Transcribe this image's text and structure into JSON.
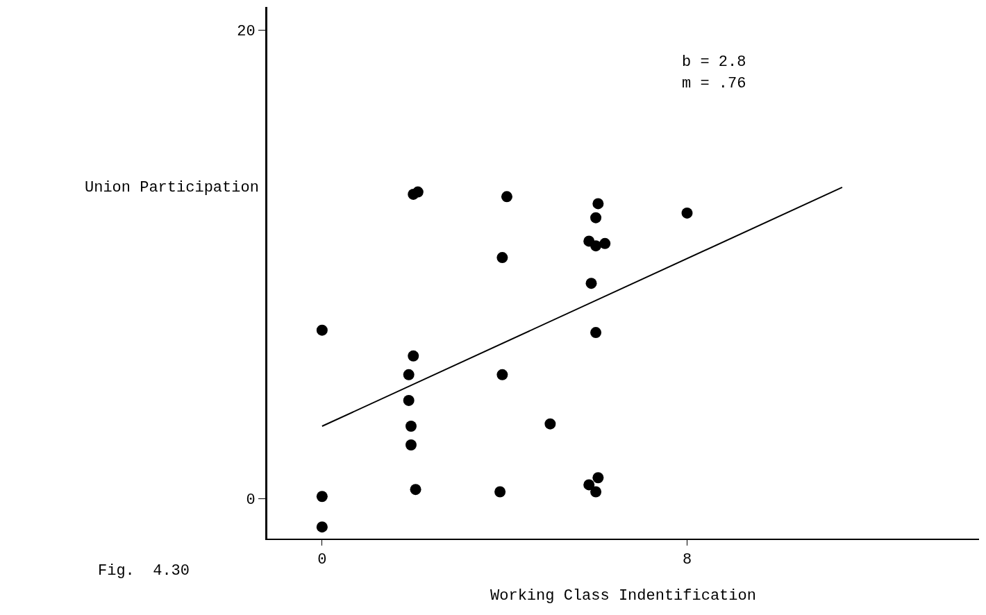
{
  "chart_data": {
    "type": "scatter",
    "xlabel": "Working Class Indentification",
    "ylabel": "Union Participation",
    "xlim": [
      -1.2,
      14.4
    ],
    "ylim": [
      -1.7,
      21
    ],
    "xticks": [
      0,
      8
    ],
    "yticks": [
      0,
      20
    ],
    "legend": false,
    "series": [
      {
        "marker": "circle",
        "color": "#000000",
        "x": [
          0,
          0,
          0,
          2,
          2.1,
          4.05,
          3.95,
          6,
          6.05,
          8,
          5.85,
          6,
          6.2,
          5.9,
          6,
          2,
          1.9,
          1.9,
          1.95,
          1.95,
          2.05,
          3.95,
          3.9,
          5,
          5.85,
          6,
          6.05
        ],
        "values": [
          7.2,
          0.1,
          -1.2,
          13,
          13.1,
          12.9,
          10.3,
          12.0,
          12.6,
          12.2,
          11,
          10.8,
          10.9,
          9.2,
          7.1,
          6.1,
          5.3,
          4.2,
          3.1,
          2.3,
          0.4,
          5.3,
          0.3,
          3.2,
          0.6,
          0.3,
          0.9
        ]
      },
      {
        "type": "line",
        "marker": "none",
        "color": "#000000",
        "x": [
          0,
          11.4
        ],
        "values": [
          3.1,
          13.3
        ]
      }
    ],
    "annotations": [
      "b = 2.8",
      "m = .76",
      "Fig.  4.30"
    ]
  }
}
